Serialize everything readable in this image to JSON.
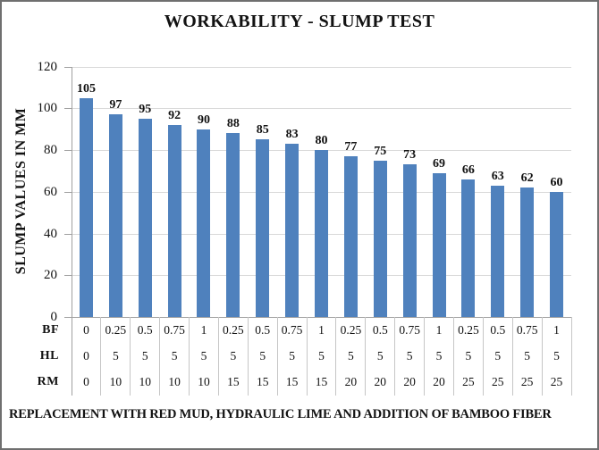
{
  "chart_data": {
    "type": "bar",
    "title": "WORKABILITY - SLUMP TEST",
    "ylabel": "SLUMP VALUES IN MM",
    "xlabel": "",
    "caption": "REPLACEMENT WITH RED MUD, HYDRAULIC LIME AND ADDITION OF BAMBOO FIBER",
    "ylim": [
      0,
      120
    ],
    "yticks": [
      0,
      20,
      40,
      60,
      80,
      100,
      120
    ],
    "grid": true,
    "legend": false,
    "bar_color": "#4F81BD",
    "values": [
      105,
      97,
      95,
      92,
      90,
      88,
      85,
      83,
      80,
      77,
      75,
      73,
      69,
      66,
      63,
      62,
      60
    ],
    "categories_table": {
      "rows": [
        {
          "label": "BF",
          "values": [
            "0",
            "0.25",
            "0.5",
            "0.75",
            "1",
            "0.25",
            "0.5",
            "0.75",
            "1",
            "0.25",
            "0.5",
            "0.75",
            "1",
            "0.25",
            "0.5",
            "0.75",
            "1"
          ]
        },
        {
          "label": "HL",
          "values": [
            "0",
            "5",
            "5",
            "5",
            "5",
            "5",
            "5",
            "5",
            "5",
            "5",
            "5",
            "5",
            "5",
            "5",
            "5",
            "5",
            "5"
          ]
        },
        {
          "label": "RM",
          "values": [
            "0",
            "10",
            "10",
            "10",
            "10",
            "15",
            "15",
            "15",
            "15",
            "20",
            "20",
            "20",
            "20",
            "25",
            "25",
            "25",
            "25"
          ]
        }
      ]
    }
  }
}
